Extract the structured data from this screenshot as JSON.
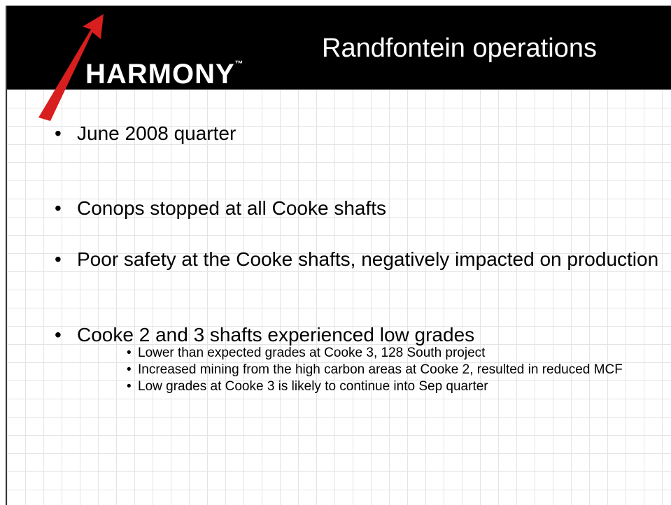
{
  "header": {
    "logo": "HARMONY",
    "logo_mark": "™",
    "title": "Randfontein operations"
  },
  "bullets": [
    {
      "text": "June 2008 quarter"
    },
    {
      "text": "Conops stopped at all Cooke shafts"
    },
    {
      "text": "Poor safety at the Cooke shafts, negatively impacted on production"
    },
    {
      "text": "Cooke 2 and 3 shafts experienced low grades",
      "sub": [
        "Lower than expected grades at Cooke 3, 128 South project",
        "Increased mining from the high carbon areas at Cooke 2, resulted in reduced MCF",
        "Low grades at Cooke 3 is likely to continue into Sep quarter"
      ]
    }
  ]
}
